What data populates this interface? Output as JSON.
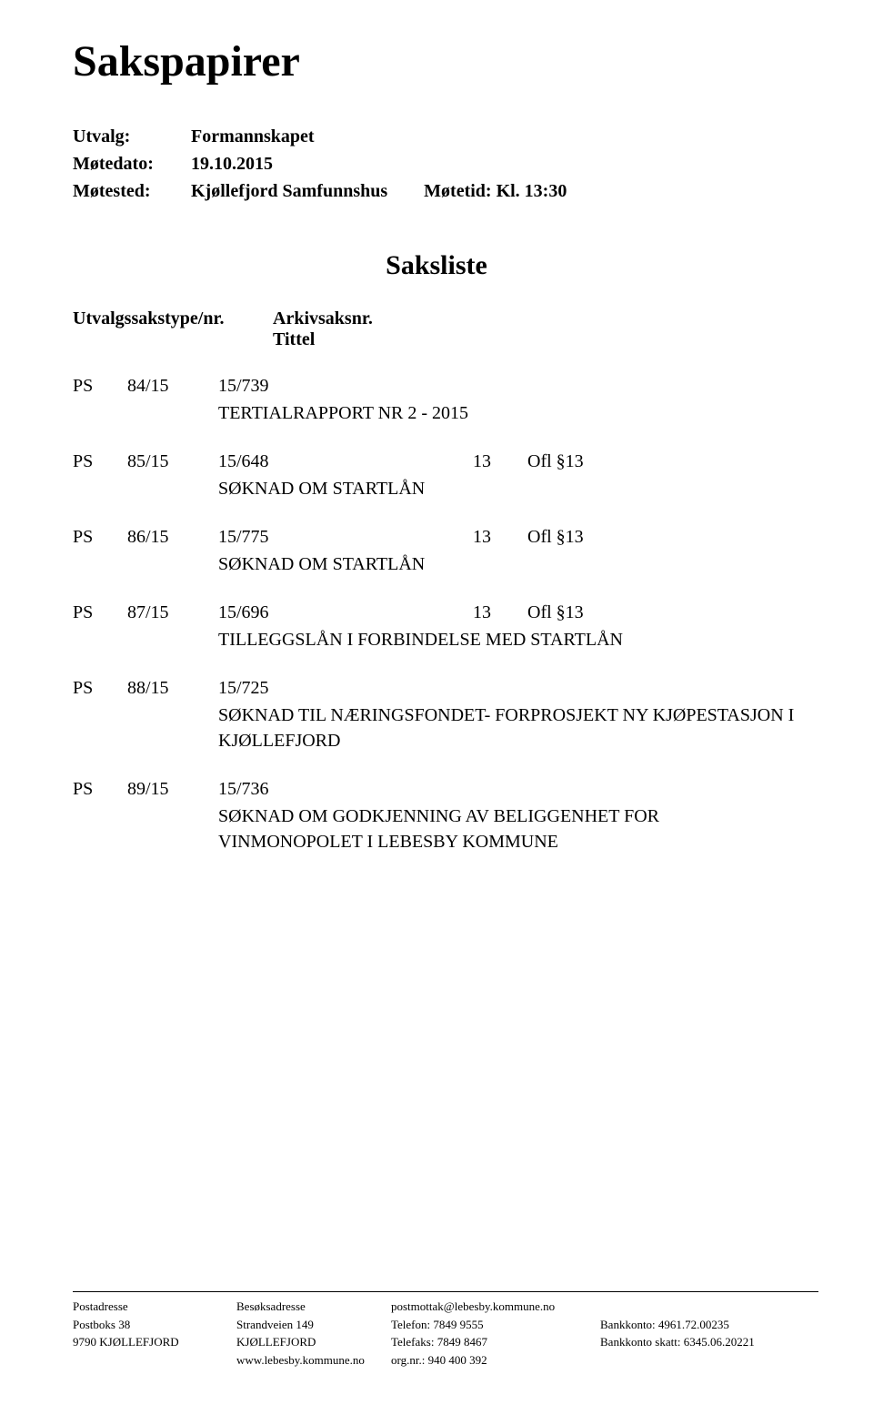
{
  "title": "Sakspapirer",
  "meta": {
    "utvalg_label": "Utvalg:",
    "utvalg_value": "Formannskapet",
    "motedato_label": "Møtedato:",
    "motedato_value": "19.10.2015",
    "motested_label": "Møtested:",
    "motested_value": "Kjøllefjord Samfunnshus",
    "motetid_label": "Møtetid: Kl. 13:30"
  },
  "saksliste_title": "Saksliste",
  "list_header": {
    "left": "Utvalgssakstype/nr.",
    "right_line1": "Arkivsaksnr.",
    "right_line2": "Tittel"
  },
  "cases": [
    {
      "ps": "PS",
      "caseno": "84/15",
      "archno": "15/739",
      "extra1": "",
      "extra2": "",
      "subtitle": "TERTIALRAPPORT NR 2 - 2015"
    },
    {
      "ps": "PS",
      "caseno": "85/15",
      "archno": "15/648",
      "extra1": "13",
      "extra2": "Ofl §13",
      "subtitle": "SØKNAD OM STARTLÅN"
    },
    {
      "ps": "PS",
      "caseno": "86/15",
      "archno": "15/775",
      "extra1": "13",
      "extra2": "Ofl §13",
      "subtitle": "SØKNAD OM STARTLÅN"
    },
    {
      "ps": "PS",
      "caseno": "87/15",
      "archno": "15/696",
      "extra1": "13",
      "extra2": "Ofl §13",
      "subtitle": "TILLEGGSLÅN I FORBINDELSE MED STARTLÅN"
    },
    {
      "ps": "PS",
      "caseno": "88/15",
      "archno": "15/725",
      "extra1": "",
      "extra2": "",
      "subtitle": "SØKNAD TIL NÆRINGSFONDET- FORPROSJEKT NY KJØPESTASJON I KJØLLEFJORD"
    },
    {
      "ps": "PS",
      "caseno": "89/15",
      "archno": "15/736",
      "extra1": "",
      "extra2": "",
      "subtitle": "SØKNAD OM GODKJENNING AV BELIGGENHET FOR VINMONOPOLET I LEBESBY KOMMUNE"
    }
  ],
  "footer": {
    "row1": {
      "c1": "Postadresse",
      "c2": "Besøksadresse",
      "c3": "postmottak@lebesby.kommune.no",
      "c4": ""
    },
    "row2": {
      "c1": "Postboks 38",
      "c2": "Strandveien 149",
      "c3": "Telefon:   7849 9555",
      "c4": "Bankkonto:         4961.72.00235"
    },
    "row3": {
      "c1": "9790 KJØLLEFJORD",
      "c2": "KJØLLEFJORD",
      "c3": "Telefaks:  7849 8467",
      "c4": "Bankkonto skatt: 6345.06.20221"
    },
    "row4": {
      "c1": "",
      "c2": "www.lebesby.kommune.no",
      "c3": "org.nr.:  940 400 392",
      "c4": ""
    }
  }
}
